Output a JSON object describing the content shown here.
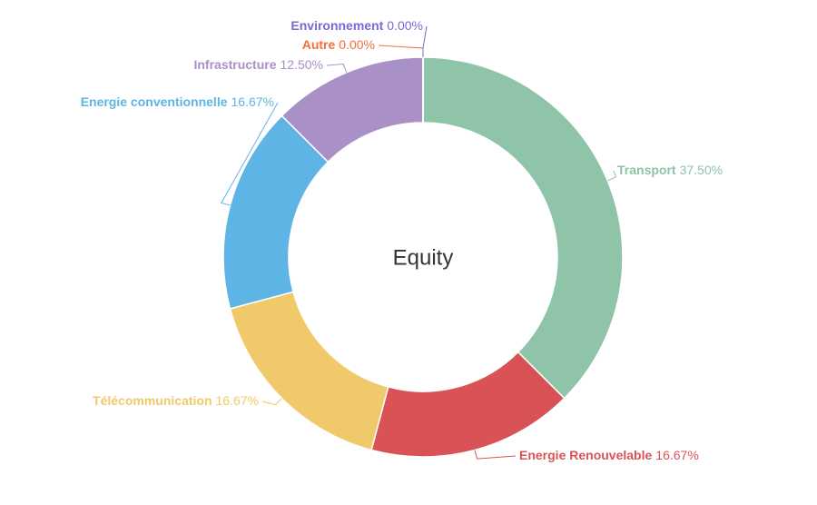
{
  "chart_data": {
    "type": "donut",
    "title": "Equity",
    "categories": [
      "Transport",
      "Energie Renouvelable",
      "Télécommunication",
      "Energie conventionnelle",
      "Infrastructure",
      "Autre",
      "Environnement"
    ],
    "values": [
      37.5,
      16.67,
      16.67,
      16.67,
      12.5,
      0,
      0
    ],
    "value_labels": [
      "37.50%",
      "16.67%",
      "16.67%",
      "16.67%",
      "12.50%",
      "0.00%",
      "0.00%"
    ],
    "colors": [
      "#8fc4a8",
      "#d95356",
      "#efc96a",
      "#5eb5e5",
      "#a991c8",
      "#f46f3d",
      "#7b68d6"
    ]
  }
}
